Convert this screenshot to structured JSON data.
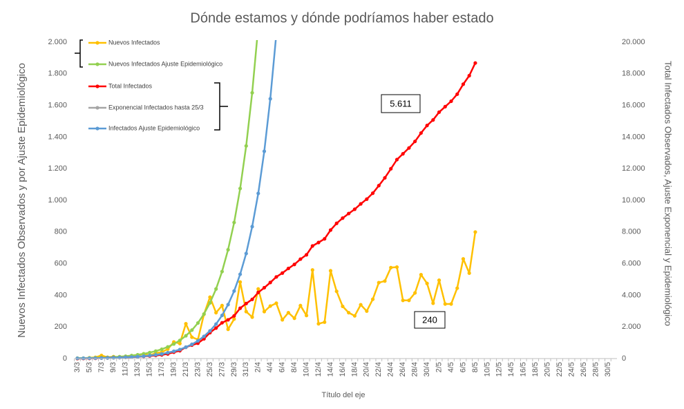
{
  "chart_data": {
    "type": "line",
    "title": "Dónde estamos y dónde podríamos haber estado",
    "x_label": "Título del eje",
    "y_label": "Nuevos Infectados Observados y por Ajuste Epidemiológico",
    "y2_label": "Total Infectados Observados, Ajuste Exponencial y Epidemiológico",
    "categories": [
      "3/3",
      null,
      "5/3",
      null,
      "7/3",
      null,
      "9/3",
      null,
      "11/3",
      null,
      "13/3",
      null,
      "15/3",
      null,
      "17/3",
      null,
      "19/3",
      null,
      "21/3",
      null,
      "23/3",
      null,
      "25/3",
      null,
      "27/3",
      null,
      "29/3",
      null,
      "31/3",
      null,
      "2/4",
      null,
      "4/4",
      null,
      "6/4",
      null,
      "8/4",
      null,
      "10/4",
      null,
      "12/4",
      null,
      "14/4",
      null,
      "16/4",
      null,
      "18/4",
      null,
      "20/4",
      null,
      "22/4",
      null,
      "24/4",
      null,
      "26/4",
      null,
      "28/4",
      null,
      "30/4",
      null,
      "2/5",
      null,
      "4/5",
      null,
      "6/5",
      null,
      "8/5",
      null,
      "10/5",
      null,
      "12/5",
      null,
      "14/5",
      null,
      "16/5",
      null,
      "18/5",
      null,
      "20/5",
      null,
      "22/5",
      null,
      "24/5",
      null,
      "26/5",
      null,
      "28/5",
      null,
      "30/5",
      null
    ],
    "series": [
      {
        "name": "Nuevos Infectados",
        "color": "#ffc000",
        "values": [
          0,
          2,
          5,
          8,
          20,
          8,
          12,
          8,
          12,
          15,
          20,
          30,
          20,
          35,
          40,
          60,
          105,
          95,
          220,
          135,
          120,
          280,
          388,
          290,
          335,
          185,
          250,
          484,
          297,
          262,
          440,
          297,
          332,
          350,
          245,
          290,
          255,
          335,
          272,
          560,
          220,
          230,
          555,
          425,
          330,
          290,
          270,
          340,
          300,
          375,
          480,
          490,
          575,
          578,
          368,
          368,
          415,
          530,
          475,
          350,
          495,
          345,
          345,
          445,
          630,
          540,
          800,
          null,
          null,
          null,
          null,
          null,
          null,
          null,
          null,
          null,
          null,
          null,
          null,
          null,
          null,
          null,
          null,
          null,
          null,
          null,
          null,
          null,
          null,
          null
        ]
      },
      {
        "name": "Nuevos Infectados Ajuste Epidemiológico",
        "color": "#92d050",
        "values": [
          3,
          3,
          4,
          5,
          6,
          8,
          10,
          12,
          15,
          19,
          24,
          30,
          38,
          47,
          59,
          74,
          92,
          115,
          144,
          180,
          225,
          282,
          352,
          440,
          550,
          688,
          860,
          1075,
          1344,
          1680,
          2100,
          null,
          null,
          null,
          null,
          null,
          null,
          null,
          null,
          null,
          null,
          null,
          null,
          null,
          null,
          null,
          null,
          null,
          null,
          null,
          null,
          null,
          null,
          null,
          null,
          null,
          null,
          null,
          null,
          null,
          null,
          null,
          null,
          null,
          null,
          null,
          null,
          null,
          null,
          null,
          null,
          null,
          null,
          null,
          null,
          null,
          null,
          null,
          null,
          null,
          null,
          null,
          null,
          null,
          null,
          null,
          null,
          null,
          null,
          null
        ]
      },
      {
        "name": "Total Infectados",
        "color": "#ff0000",
        "axis": "y2",
        "values": [
          0,
          2,
          7,
          15,
          35,
          43,
          55,
          63,
          75,
          90,
          110,
          140,
          160,
          195,
          235,
          295,
          400,
          495,
          715,
          850,
          970,
          1250,
          1638,
          1928,
          2263,
          2448,
          2698,
          3182,
          3479,
          3741,
          4181,
          4478,
          4810,
          5160,
          5405,
          5695,
          5950,
          6285,
          6557,
          7117,
          7337,
          7567,
          8122,
          8547,
          8877,
          9167,
          9437,
          9777,
          10077,
          10452,
          10932,
          11422,
          11997,
          12575,
          12943,
          13311,
          13726,
          14256,
          14731,
          15081,
          15576,
          15921,
          16266,
          16711,
          17341,
          17881,
          18681,
          null,
          null,
          null,
          null,
          null,
          null,
          null,
          null,
          null,
          null,
          null,
          null,
          null,
          null,
          null,
          null,
          null,
          null,
          null,
          null,
          null,
          null,
          null
        ]
      },
      {
        "name": "Exponencial Infectados hasta 25/3",
        "color": "#a5a5a5",
        "axis": "y2",
        "values": [
          13,
          16,
          20,
          25,
          31,
          39,
          49,
          61,
          77,
          96,
          120,
          150,
          190,
          235,
          290,
          370,
          460,
          570,
          720,
          900,
          1120,
          1400,
          1750,
          null,
          null,
          null,
          null,
          null,
          null,
          null,
          null,
          null,
          null,
          null,
          null,
          null,
          null,
          null,
          null,
          null,
          null,
          null,
          null,
          null,
          null,
          null,
          null,
          null,
          null,
          null,
          null,
          null,
          null,
          null,
          null,
          null,
          null,
          null,
          null,
          null,
          null,
          null,
          null,
          null,
          null,
          null,
          null,
          null,
          null,
          null,
          null,
          null,
          null,
          null,
          null,
          null,
          null,
          null,
          null,
          null,
          null,
          null,
          null,
          null,
          null,
          null,
          null,
          null,
          null,
          null
        ]
      },
      {
        "name": "Infectados Ajuste Epidemiológico",
        "color": "#5b9bd5",
        "axis": "y2",
        "values": [
          13,
          16,
          20,
          25,
          31,
          39,
          49,
          61,
          77,
          96,
          120,
          150,
          190,
          235,
          290,
          370,
          460,
          570,
          720,
          900,
          1120,
          1400,
          1750,
          2180,
          2730,
          3410,
          4270,
          5330,
          6640,
          8340,
          10440,
          13100,
          16420,
          20500,
          null,
          null,
          null,
          null,
          null,
          null,
          null,
          null,
          null,
          null,
          null,
          null,
          null,
          null,
          null,
          null,
          null,
          null,
          null,
          null,
          null,
          null,
          null,
          null,
          null,
          null,
          null,
          null,
          null,
          null,
          null,
          null,
          null,
          null,
          null,
          null,
          null,
          null,
          null,
          null,
          null,
          null,
          null,
          null,
          null,
          null,
          null,
          null,
          null,
          null,
          null,
          null,
          null,
          null,
          null,
          null
        ]
      }
    ],
    "ylim": [
      0,
      2000
    ],
    "yticks": [
      0,
      200,
      400,
      600,
      800,
      {
        "value": 1000,
        "label": "1.000"
      },
      {
        "value": 1200,
        "label": "1.200"
      },
      {
        "value": 1400,
        "label": "1.400"
      },
      {
        "value": 1600,
        "label": "1.600"
      },
      {
        "value": 1800,
        "label": "1.800"
      },
      {
        "value": 2000,
        "label": "2.000"
      }
    ],
    "y2lim": [
      0,
      20000
    ],
    "y2ticks": [
      0,
      {
        "value": 2000,
        "label": "2.000"
      },
      {
        "value": 4000,
        "label": "4.000"
      },
      {
        "value": 6000,
        "label": "6.000"
      },
      {
        "value": 8000,
        "label": "8.000"
      },
      {
        "value": 10000,
        "label": "10.000"
      },
      {
        "value": 12000,
        "label": "12.000"
      },
      {
        "value": 14000,
        "label": "14.000"
      },
      {
        "value": 16000,
        "label": "16.000"
      },
      {
        "value": 18000,
        "label": "18.000"
      },
      {
        "value": 20000,
        "label": "20.000"
      }
    ],
    "annotations": [
      "5.611",
      "240"
    ],
    "grid": false
  }
}
